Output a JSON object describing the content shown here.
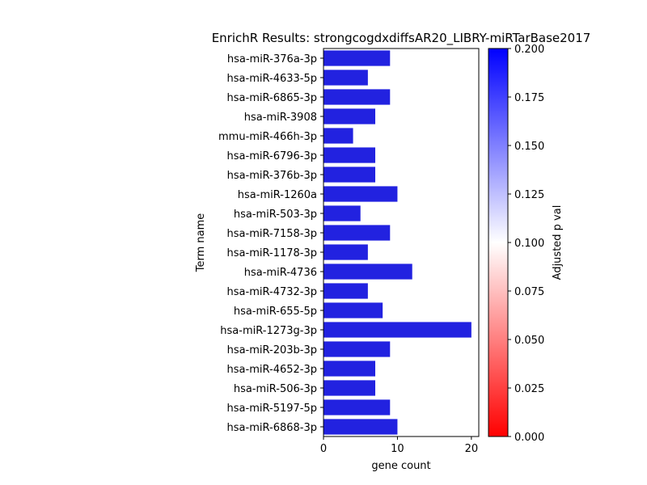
{
  "chart_data": {
    "type": "bar",
    "orientation": "horizontal",
    "title": "EnrichR Results: strongcogdxdiffsAR20_LIBRY-miRTarBase2017",
    "xlabel": "gene count",
    "ylabel": "Term name",
    "xlim": [
      0,
      21
    ],
    "xticks": [
      "0",
      "10",
      "20"
    ],
    "xtick_values": [
      0,
      10,
      20
    ],
    "grid": false,
    "categories": [
      "hsa-miR-376a-3p",
      "hsa-miR-4633-5p",
      "hsa-miR-6865-3p",
      "hsa-miR-3908",
      "mmu-miR-466h-3p",
      "hsa-miR-6796-3p",
      "hsa-miR-376b-3p",
      "hsa-miR-1260a",
      "hsa-miR-503-3p",
      "hsa-miR-7158-3p",
      "hsa-miR-1178-3p",
      "hsa-miR-4736",
      "hsa-miR-4732-3p",
      "hsa-miR-655-5p",
      "hsa-miR-1273g-3p",
      "hsa-miR-203b-3p",
      "hsa-miR-4652-3p",
      "hsa-miR-506-3p",
      "hsa-miR-5197-5p",
      "hsa-miR-6868-3p"
    ],
    "values": [
      9,
      6,
      9,
      7,
      4,
      7,
      7,
      10,
      5,
      9,
      6,
      12,
      6,
      8,
      20,
      9,
      7,
      7,
      9,
      10
    ],
    "bar_color": "#2222e0",
    "colorbar": {
      "label": "Adjusted p val",
      "range": [
        0,
        0.2
      ],
      "colors": [
        "#ff0000",
        "#ffffff",
        "#0000ff"
      ],
      "ticks": [
        "0.000",
        "0.025",
        "0.050",
        "0.075",
        "0.100",
        "0.125",
        "0.150",
        "0.175",
        "0.200"
      ],
      "tick_values": [
        0,
        0.025,
        0.05,
        0.075,
        0.1,
        0.125,
        0.15,
        0.175,
        0.2
      ]
    }
  }
}
